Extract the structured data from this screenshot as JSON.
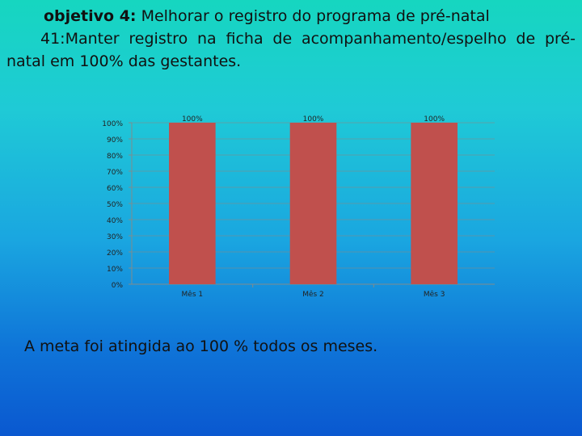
{
  "header": {
    "objective_label": "objetivo 4:",
    "objective_text": " Melhorar o registro do programa de pré-natal",
    "indicator_line1": "41:Manter registro na ficha de acompanhamento/espelho de pré-",
    "indicator_line2": "natal em 100% das gestantes."
  },
  "chart_data": {
    "type": "bar",
    "categories": [
      "Mês 1",
      "Mês 2",
      "Mês 3"
    ],
    "values": [
      100,
      100,
      100
    ],
    "data_labels": [
      "100%",
      "100%",
      "100%"
    ],
    "y_ticks": [
      "0%",
      "10%",
      "20%",
      "30%",
      "40%",
      "50%",
      "60%",
      "70%",
      "80%",
      "90%",
      "100%"
    ],
    "ylim": [
      0,
      100
    ],
    "grid": true,
    "bar_color": "#c0504d",
    "title": "",
    "xlabel": "",
    "ylabel": ""
  },
  "footer": {
    "conclusion": "A meta foi atingida ao 100 % todos os meses."
  }
}
